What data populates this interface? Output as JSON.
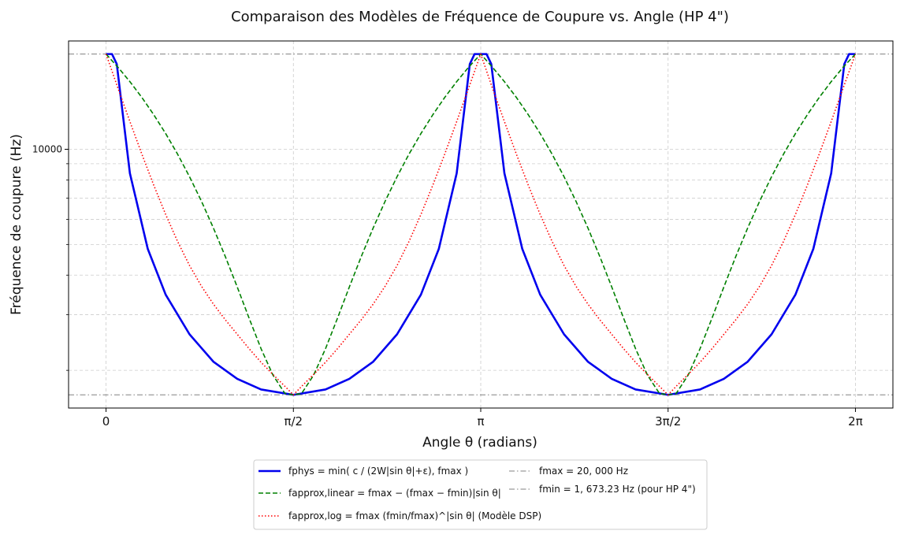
{
  "chart_data": {
    "type": "line",
    "title": "Comparaison des Modèles de Fréquence de Coupure vs. Angle (HP 4\")",
    "xlabel": "Angle θ (radians)",
    "ylabel": "Fréquence de coupure (Hz)",
    "xscale": "linear",
    "yscale": "log",
    "xlim": [
      -0.3141592653589793,
      6.597344572538566
    ],
    "ylim": [
      1520,
      22000
    ],
    "grid": true,
    "legend_position": "bottom-center",
    "x_ticks": [
      {
        "value": 0,
        "label": "0"
      },
      {
        "value": 1.5707963267948966,
        "label": "π/2"
      },
      {
        "value": 3.141592653589793,
        "label": "π"
      },
      {
        "value": 4.71238898038469,
        "label": "3π/2"
      },
      {
        "value": 6.283185307179586,
        "label": "2π"
      }
    ],
    "y_major_ticks": [
      {
        "value": 10000,
        "label": "10000"
      }
    ],
    "y_minor_ticks": [
      2000,
      3000,
      4000,
      5000,
      6000,
      7000,
      8000,
      9000
    ],
    "parameters": {
      "f_max": 20000,
      "f_min": 1673.23
    },
    "series": [
      {
        "name": "f_phys = min( c / (2W|sin θ| + ε), f_max )",
        "legend_label": "fphys = min( c / (2W|sin θ|+ε), fmax )",
        "style": "solid",
        "color": "#0000ee",
        "x": [
          0,
          0.05,
          0.09,
          0.2,
          0.35,
          0.5,
          0.7,
          0.9,
          1.1,
          1.3,
          1.5708,
          1.84,
          2.04,
          2.24,
          2.44,
          2.64,
          2.79,
          2.94,
          3.05,
          3.09,
          3.1416,
          3.19,
          3.23,
          3.34,
          3.49,
          3.64,
          3.84,
          4.04,
          4.24,
          4.44,
          4.7124,
          4.98,
          5.18,
          5.38,
          5.58,
          5.78,
          5.93,
          6.08,
          6.19,
          6.23,
          6.2832
        ],
        "values": [
          20000,
          20000,
          18600,
          8400,
          4840,
          3470,
          2600,
          2130,
          1880,
          1740,
          1673,
          1740,
          1880,
          2130,
          2600,
          3470,
          4840,
          8400,
          18600,
          20000,
          20000,
          20000,
          18600,
          8400,
          4840,
          3470,
          2600,
          2130,
          1880,
          1740,
          1673,
          1740,
          1880,
          2130,
          2600,
          3470,
          4840,
          8400,
          18600,
          20000,
          20000
        ]
      },
      {
        "name": "f_approx,linear = f_max − (f_max − f_min)|sin θ|",
        "legend_label": "fapprox,linear = fmax − (fmax − fmin)|sin θ|",
        "style": "dashed",
        "color": "#008000",
        "x": [
          0,
          0.1,
          0.2,
          0.3,
          0.4,
          0.5,
          0.6,
          0.7,
          0.8,
          0.9,
          1.0,
          1.1,
          1.2,
          1.3,
          1.4,
          1.5,
          1.5708,
          1.64,
          1.74,
          1.84,
          1.94,
          2.04,
          2.14,
          2.24,
          2.34,
          2.44,
          2.54,
          2.64,
          2.74,
          2.84,
          2.94,
          3.04,
          3.1416,
          3.24,
          3.34,
          3.44,
          3.54,
          3.64,
          3.74,
          3.84,
          3.94,
          4.04,
          4.14,
          4.24,
          4.34,
          4.44,
          4.54,
          4.64,
          4.7124,
          4.78,
          4.88,
          4.98,
          5.08,
          5.18,
          5.28,
          5.38,
          5.48,
          5.58,
          5.68,
          5.78,
          5.88,
          5.98,
          6.08,
          6.18,
          6.2832
        ],
        "values": [
          20000,
          18170,
          16360,
          14590,
          12860,
          11210,
          9650,
          8190,
          6850,
          5640,
          4580,
          3670,
          2920,
          2340,
          1930,
          1690,
          1673,
          1690,
          1930,
          2340,
          2920,
          3670,
          4580,
          5640,
          6850,
          8190,
          9650,
          11210,
          12860,
          14590,
          16360,
          18170,
          20000,
          18170,
          16360,
          14590,
          12860,
          11210,
          9650,
          8190,
          6850,
          5640,
          4580,
          3670,
          2920,
          2340,
          1930,
          1690,
          1673,
          1690,
          1930,
          2340,
          2920,
          3670,
          4580,
          5640,
          6850,
          8190,
          9650,
          11210,
          12860,
          14590,
          16360,
          18170,
          20000
        ]
      },
      {
        "name": "f_approx,log = f_max (f_min / f_max)^|sin θ| (Modèle DSP)",
        "legend_label": "fapprox,log = fmax (fmin/fmax)^|sin θ| (Modèle DSP)",
        "style": "dotted",
        "color": "#ff0000",
        "x": [
          0,
          0.1,
          0.2,
          0.3,
          0.4,
          0.5,
          0.6,
          0.7,
          0.8,
          0.9,
          1.0,
          1.1,
          1.2,
          1.3,
          1.4,
          1.5,
          1.5708,
          1.64,
          1.74,
          1.84,
          1.94,
          2.04,
          2.14,
          2.24,
          2.34,
          2.44,
          2.54,
          2.64,
          2.74,
          2.84,
          2.94,
          3.04,
          3.1416,
          3.24,
          3.34,
          3.44,
          3.54,
          3.64,
          3.74,
          3.84,
          3.94,
          4.04,
          4.14,
          4.24,
          4.34,
          4.44,
          4.54,
          4.64,
          4.7124,
          4.78,
          4.88,
          4.98,
          5.08,
          5.18,
          5.28,
          5.38,
          5.48,
          5.58,
          5.68,
          5.78,
          5.88,
          5.98,
          6.08,
          6.18,
          6.2832
        ],
        "values": [
          20000,
          15600,
          12240,
          9660,
          7700,
          6220,
          5110,
          4290,
          3690,
          3240,
          2890,
          2600,
          2340,
          2120,
          1940,
          1780,
          1673,
          1780,
          1940,
          2120,
          2340,
          2600,
          2890,
          3240,
          3690,
          4290,
          5110,
          6220,
          7700,
          9660,
          12240,
          15600,
          20000,
          15600,
          12240,
          9660,
          7700,
          6220,
          5110,
          4290,
          3690,
          3240,
          2890,
          2600,
          2340,
          2120,
          1940,
          1780,
          1673,
          1780,
          1940,
          2120,
          2340,
          2600,
          2890,
          3240,
          3690,
          4290,
          5110,
          6220,
          7700,
          9660,
          12240,
          15600,
          20000
        ]
      },
      {
        "name": "f_max = 20,000 Hz",
        "legend_label": "fmax = 20, 000 Hz",
        "style": "dashdot",
        "color": "#808080",
        "x": [
          -0.3141592653589793,
          6.597344572538566
        ],
        "values": [
          20000,
          20000
        ]
      },
      {
        "name": "f_min = 1,673.23 Hz (pour HP 4\")",
        "legend_label": "fmin = 1, 673.23 Hz (pour HP 4\")",
        "style": "dashdot",
        "color": "#808080",
        "x": [
          -0.3141592653589793,
          6.597344572538566
        ],
        "values": [
          1673.23,
          1673.23
        ]
      }
    ]
  }
}
